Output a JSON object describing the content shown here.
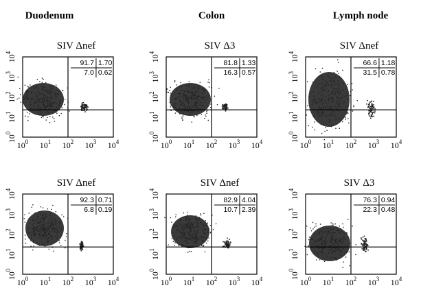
{
  "columns": [
    "Duodenum",
    "Colon",
    "Lymph node"
  ],
  "axis": {
    "base": "10",
    "exponents": [
      "0",
      "1",
      "2",
      "3",
      "4"
    ]
  },
  "panels": [
    {
      "title": "SIV Δnef",
      "quadrants": [
        [
          "91.7",
          "1.70"
        ],
        [
          "7.0",
          "0.62"
        ]
      ]
    },
    {
      "title": "SIV Δ3",
      "quadrants": [
        [
          "81.8",
          "1.33"
        ],
        [
          "16.3",
          "0.57"
        ]
      ]
    },
    {
      "title": "SIV Δnef",
      "quadrants": [
        [
          "66.6",
          "1.18"
        ],
        [
          "31.5",
          "0.78"
        ]
      ]
    },
    {
      "title": "SIV Δnef",
      "quadrants": [
        [
          "92.3",
          "0.71"
        ],
        [
          "6.8",
          "0.19"
        ]
      ]
    },
    {
      "title": "SIV Δnef",
      "quadrants": [
        [
          "82.9",
          "4.04"
        ],
        [
          "10.7",
          "2.39"
        ]
      ]
    },
    {
      "title": "SIV Δ3",
      "quadrants": [
        [
          "76.3",
          "0.94"
        ],
        [
          "22.3",
          "0.48"
        ]
      ]
    }
  ]
}
